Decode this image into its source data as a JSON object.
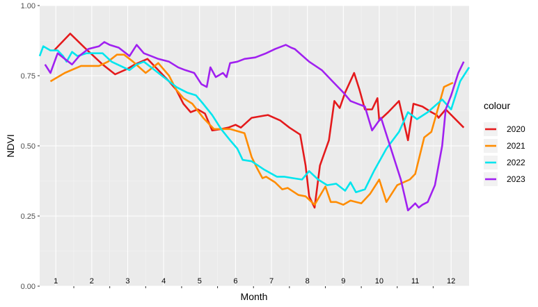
{
  "chart_data": {
    "type": "line",
    "title": "",
    "xlabel": "Month",
    "ylabel": "NDVI",
    "xlim": [
      0.55,
      12.5
    ],
    "ylim": [
      0,
      1
    ],
    "xticks": [
      1,
      2,
      3,
      4,
      5,
      6,
      7,
      8,
      9,
      10,
      11,
      12
    ],
    "xtick_labels": [
      "1",
      "2",
      "3",
      "4",
      "5",
      "6",
      "7",
      "8",
      "9",
      "10",
      "11",
      "12"
    ],
    "yticks": [
      0,
      0.25,
      0.5,
      0.75,
      1
    ],
    "ytick_labels": [
      "0.00",
      "0.25",
      "0.50",
      "0.75",
      "1.00"
    ],
    "grid": true,
    "legend_title": "colour",
    "legend_position": "right",
    "series": [
      {
        "name": "2020",
        "color": "#E41A1C",
        "points": [
          [
            0.95,
            0.84
          ],
          [
            1.4,
            0.9
          ],
          [
            1.8,
            0.85
          ],
          [
            2.3,
            0.79
          ],
          [
            2.65,
            0.755
          ],
          [
            3.0,
            0.775
          ],
          [
            3.2,
            0.79
          ],
          [
            3.55,
            0.81
          ],
          [
            3.85,
            0.77
          ],
          [
            4.15,
            0.73
          ],
          [
            4.35,
            0.7
          ],
          [
            4.55,
            0.65
          ],
          [
            4.75,
            0.62
          ],
          [
            4.95,
            0.63
          ],
          [
            5.15,
            0.615
          ],
          [
            5.35,
            0.555
          ],
          [
            5.6,
            0.56
          ],
          [
            5.8,
            0.565
          ],
          [
            6.0,
            0.575
          ],
          [
            6.15,
            0.565
          ],
          [
            6.45,
            0.6
          ],
          [
            6.9,
            0.61
          ],
          [
            7.25,
            0.59
          ],
          [
            7.5,
            0.565
          ],
          [
            7.8,
            0.54
          ],
          [
            7.95,
            0.43
          ],
          [
            8.05,
            0.32
          ],
          [
            8.2,
            0.28
          ],
          [
            8.35,
            0.43
          ],
          [
            8.6,
            0.52
          ],
          [
            8.75,
            0.66
          ],
          [
            8.9,
            0.635
          ],
          [
            9.05,
            0.69
          ],
          [
            9.3,
            0.76
          ],
          [
            9.45,
            0.7
          ],
          [
            9.6,
            0.63
          ],
          [
            9.8,
            0.63
          ],
          [
            9.95,
            0.67
          ],
          [
            10.0,
            0.59
          ],
          [
            10.25,
            0.62
          ],
          [
            10.55,
            0.66
          ],
          [
            10.8,
            0.52
          ],
          [
            10.95,
            0.65
          ],
          [
            11.2,
            0.64
          ],
          [
            11.45,
            0.62
          ],
          [
            11.6,
            0.61
          ],
          [
            11.65,
            0.6
          ],
          [
            11.85,
            0.63
          ],
          [
            12.35,
            0.565
          ]
        ]
      },
      {
        "name": "2021",
        "color": "#FF8C00",
        "points": [
          [
            0.85,
            0.73
          ],
          [
            1.25,
            0.76
          ],
          [
            1.7,
            0.785
          ],
          [
            2.05,
            0.785
          ],
          [
            2.2,
            0.785
          ],
          [
            2.45,
            0.8
          ],
          [
            2.7,
            0.825
          ],
          [
            2.9,
            0.825
          ],
          [
            3.15,
            0.8
          ],
          [
            3.5,
            0.76
          ],
          [
            3.85,
            0.795
          ],
          [
            4.15,
            0.75
          ],
          [
            4.35,
            0.7
          ],
          [
            4.55,
            0.67
          ],
          [
            4.8,
            0.65
          ],
          [
            5.1,
            0.6
          ],
          [
            5.4,
            0.56
          ],
          [
            5.85,
            0.56
          ],
          [
            6.25,
            0.545
          ],
          [
            6.45,
            0.46
          ],
          [
            6.6,
            0.42
          ],
          [
            6.75,
            0.385
          ],
          [
            6.85,
            0.39
          ],
          [
            7.1,
            0.37
          ],
          [
            7.3,
            0.345
          ],
          [
            7.45,
            0.35
          ],
          [
            7.75,
            0.325
          ],
          [
            7.95,
            0.32
          ],
          [
            8.2,
            0.29
          ],
          [
            8.5,
            0.355
          ],
          [
            8.65,
            0.3
          ],
          [
            8.8,
            0.3
          ],
          [
            9.0,
            0.29
          ],
          [
            9.2,
            0.305
          ],
          [
            9.5,
            0.295
          ],
          [
            9.75,
            0.33
          ],
          [
            10.0,
            0.38
          ],
          [
            10.2,
            0.3
          ],
          [
            10.5,
            0.36
          ],
          [
            10.85,
            0.38
          ],
          [
            11.0,
            0.4
          ],
          [
            11.25,
            0.53
          ],
          [
            11.45,
            0.55
          ],
          [
            11.65,
            0.64
          ],
          [
            11.8,
            0.71
          ],
          [
            12.05,
            0.725
          ]
        ]
      },
      {
        "name": "2022",
        "color": "#00E5EE",
        "points": [
          [
            0.55,
            0.82
          ],
          [
            0.65,
            0.855
          ],
          [
            0.85,
            0.84
          ],
          [
            1.05,
            0.84
          ],
          [
            1.2,
            0.82
          ],
          [
            1.3,
            0.8
          ],
          [
            1.45,
            0.835
          ],
          [
            1.6,
            0.82
          ],
          [
            1.85,
            0.83
          ],
          [
            2.3,
            0.83
          ],
          [
            2.55,
            0.8
          ],
          [
            2.8,
            0.785
          ],
          [
            3.05,
            0.77
          ],
          [
            3.25,
            0.79
          ],
          [
            3.45,
            0.8
          ],
          [
            3.75,
            0.77
          ],
          [
            4.05,
            0.74
          ],
          [
            4.35,
            0.71
          ],
          [
            4.65,
            0.69
          ],
          [
            4.9,
            0.68
          ],
          [
            5.1,
            0.65
          ],
          [
            5.35,
            0.61
          ],
          [
            5.6,
            0.56
          ],
          [
            5.85,
            0.52
          ],
          [
            6.05,
            0.49
          ],
          [
            6.2,
            0.45
          ],
          [
            6.45,
            0.445
          ],
          [
            6.8,
            0.415
          ],
          [
            7.15,
            0.39
          ],
          [
            7.35,
            0.39
          ],
          [
            7.6,
            0.385
          ],
          [
            7.85,
            0.38
          ],
          [
            8.05,
            0.41
          ],
          [
            8.3,
            0.38
          ],
          [
            8.55,
            0.36
          ],
          [
            8.8,
            0.365
          ],
          [
            9.05,
            0.34
          ],
          [
            9.2,
            0.37
          ],
          [
            9.35,
            0.335
          ],
          [
            9.6,
            0.345
          ],
          [
            9.85,
            0.41
          ],
          [
            10.2,
            0.49
          ],
          [
            10.55,
            0.55
          ],
          [
            10.8,
            0.62
          ],
          [
            11.05,
            0.595
          ],
          [
            11.35,
            0.62
          ],
          [
            11.75,
            0.665
          ],
          [
            12.0,
            0.63
          ],
          [
            12.25,
            0.73
          ],
          [
            12.5,
            0.78
          ]
        ]
      },
      {
        "name": "2023",
        "color": "#A020F0",
        "points": [
          [
            0.7,
            0.79
          ],
          [
            0.85,
            0.76
          ],
          [
            1.05,
            0.83
          ],
          [
            1.25,
            0.81
          ],
          [
            1.45,
            0.79
          ],
          [
            1.65,
            0.82
          ],
          [
            1.9,
            0.845
          ],
          [
            2.2,
            0.855
          ],
          [
            2.35,
            0.87
          ],
          [
            2.5,
            0.86
          ],
          [
            2.75,
            0.85
          ],
          [
            3.05,
            0.82
          ],
          [
            3.25,
            0.86
          ],
          [
            3.45,
            0.83
          ],
          [
            3.65,
            0.82
          ],
          [
            3.85,
            0.81
          ],
          [
            4.15,
            0.8
          ],
          [
            4.4,
            0.78
          ],
          [
            4.6,
            0.77
          ],
          [
            4.85,
            0.76
          ],
          [
            5.05,
            0.72
          ],
          [
            5.2,
            0.71
          ],
          [
            5.3,
            0.78
          ],
          [
            5.45,
            0.745
          ],
          [
            5.65,
            0.76
          ],
          [
            5.75,
            0.745
          ],
          [
            5.85,
            0.795
          ],
          [
            6.05,
            0.8
          ],
          [
            6.25,
            0.81
          ],
          [
            6.55,
            0.815
          ],
          [
            6.85,
            0.83
          ],
          [
            7.1,
            0.845
          ],
          [
            7.4,
            0.86
          ],
          [
            7.55,
            0.85
          ],
          [
            7.65,
            0.845
          ],
          [
            8.05,
            0.8
          ],
          [
            8.4,
            0.77
          ],
          [
            8.7,
            0.73
          ],
          [
            9.0,
            0.69
          ],
          [
            9.2,
            0.66
          ],
          [
            9.4,
            0.65
          ],
          [
            9.6,
            0.64
          ],
          [
            9.8,
            0.555
          ],
          [
            10.05,
            0.6
          ],
          [
            10.3,
            0.5
          ],
          [
            10.6,
            0.38
          ],
          [
            10.8,
            0.27
          ],
          [
            11.0,
            0.295
          ],
          [
            11.1,
            0.28
          ],
          [
            11.2,
            0.29
          ],
          [
            11.35,
            0.3
          ],
          [
            11.55,
            0.36
          ],
          [
            11.75,
            0.5
          ],
          [
            11.85,
            0.63
          ],
          [
            12.0,
            0.68
          ],
          [
            12.2,
            0.76
          ],
          [
            12.35,
            0.8
          ]
        ]
      }
    ]
  }
}
